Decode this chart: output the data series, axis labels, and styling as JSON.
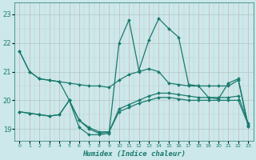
{
  "xlabel": "Humidex (Indice chaleur)",
  "background_color": "#cce8ea",
  "grid_color_v": "#c4b8b8",
  "grid_color_h": "#b8c8c8",
  "line_color": "#1a7a6e",
  "x_ticks": [
    0,
    1,
    2,
    3,
    4,
    5,
    6,
    7,
    8,
    9,
    10,
    11,
    12,
    13,
    14,
    15,
    16,
    17,
    18,
    19,
    20,
    21,
    22,
    23
  ],
  "y_ticks": [
    19,
    20,
    21,
    22,
    23
  ],
  "ylim": [
    18.6,
    23.4
  ],
  "xlim": [
    -0.5,
    23.5
  ],
  "y_line1": [
    21.7,
    21.0,
    20.75,
    20.7,
    20.65,
    20.6,
    20.55,
    20.5,
    20.5,
    20.45,
    20.7,
    20.9,
    21.0,
    21.1,
    21.0,
    20.6,
    20.55,
    20.5,
    20.5,
    20.5,
    20.5,
    20.5,
    20.7,
    19.1
  ],
  "y_line2": [
    19.6,
    19.55,
    19.5,
    19.45,
    19.5,
    20.0,
    19.3,
    19.0,
    18.85,
    18.9,
    19.6,
    19.75,
    19.9,
    20.0,
    20.1,
    20.1,
    20.05,
    20.0,
    20.0,
    20.0,
    20.0,
    20.0,
    20.0,
    19.15
  ],
  "y_line3": [
    19.6,
    19.55,
    19.5,
    19.45,
    19.5,
    20.0,
    19.3,
    19.05,
    18.9,
    18.9,
    19.7,
    19.85,
    20.0,
    20.15,
    20.25,
    20.25,
    20.2,
    20.15,
    20.1,
    20.1,
    20.1,
    20.1,
    20.15,
    19.2
  ],
  "y_line4": [
    21.7,
    21.0,
    20.75,
    20.7,
    20.65,
    20.0,
    19.05,
    18.8,
    18.8,
    18.85,
    22.0,
    22.8,
    21.05,
    22.1,
    22.85,
    22.5,
    22.2,
    20.55,
    20.5,
    20.1,
    20.05,
    20.6,
    20.75,
    19.1
  ],
  "x": [
    0,
    1,
    2,
    3,
    4,
    5,
    6,
    7,
    8,
    9,
    10,
    11,
    12,
    13,
    14,
    15,
    16,
    17,
    18,
    19,
    20,
    21,
    22,
    23
  ]
}
